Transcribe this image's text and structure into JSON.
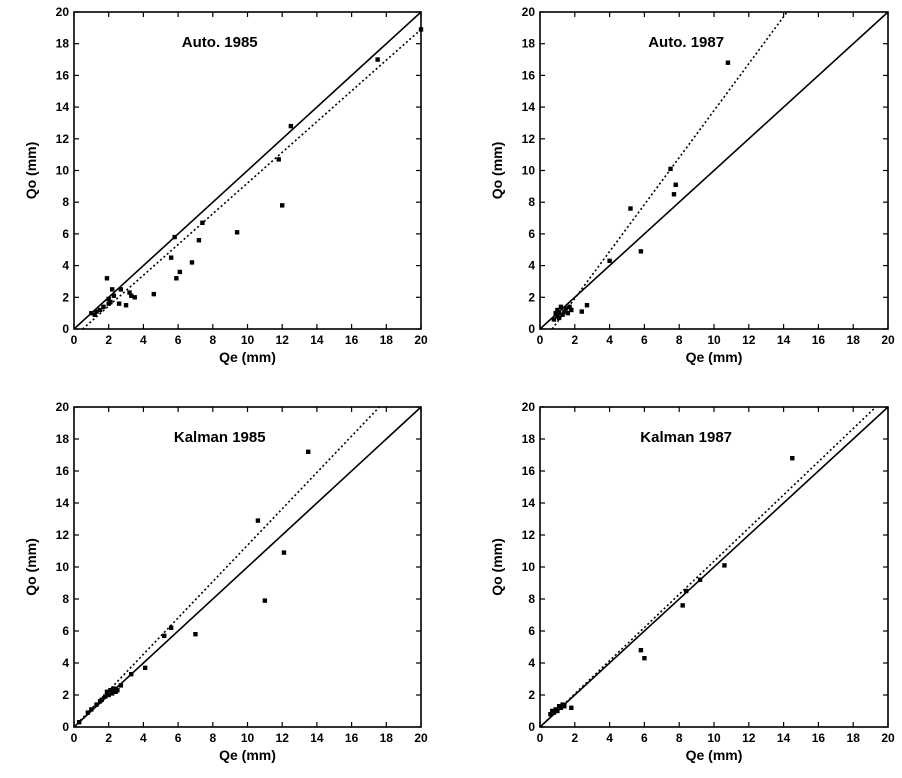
{
  "chart_data": [
    {
      "type": "scatter",
      "title": "Auto. 1985",
      "xlabel": "Qe (mm)",
      "ylabel": "Qo (mm)",
      "xlim": [
        0,
        20
      ],
      "ylim": [
        0,
        20
      ],
      "xticks": [
        "0",
        "2",
        "4",
        "6",
        "8",
        "10",
        "12",
        "14",
        "16",
        "18",
        "20"
      ],
      "yticks": [
        "0",
        "2",
        "4",
        "6",
        "8",
        "10",
        "12",
        "14",
        "16",
        "18",
        "20"
      ],
      "grid": false,
      "lines": [
        {
          "style": "solid",
          "x": [
            0,
            20
          ],
          "y": [
            0,
            20
          ]
        },
        {
          "style": "dotted",
          "x": [
            0.5,
            20
          ],
          "y": [
            0,
            18.9
          ]
        }
      ],
      "points": [
        [
          1.0,
          1.0
        ],
        [
          1.2,
          0.9
        ],
        [
          1.3,
          1.1
        ],
        [
          1.5,
          1.2
        ],
        [
          1.7,
          1.4
        ],
        [
          1.9,
          3.2
        ],
        [
          2.0,
          1.6
        ],
        [
          2.0,
          1.9
        ],
        [
          2.1,
          1.7
        ],
        [
          2.2,
          2.5
        ],
        [
          2.3,
          2.1
        ],
        [
          2.6,
          1.6
        ],
        [
          2.7,
          2.5
        ],
        [
          3.0,
          1.5
        ],
        [
          3.2,
          2.3
        ],
        [
          3.3,
          2.1
        ],
        [
          3.5,
          2.0
        ],
        [
          4.6,
          2.2
        ],
        [
          5.6,
          4.5
        ],
        [
          5.8,
          5.8
        ],
        [
          5.9,
          3.2
        ],
        [
          6.1,
          3.6
        ],
        [
          6.8,
          4.2
        ],
        [
          7.2,
          5.6
        ],
        [
          7.4,
          6.7
        ],
        [
          9.4,
          6.1
        ],
        [
          11.8,
          10.7
        ],
        [
          12.0,
          7.8
        ],
        [
          12.5,
          12.8
        ],
        [
          17.5,
          17.0
        ],
        [
          20.0,
          18.9
        ]
      ]
    },
    {
      "type": "scatter",
      "title": "Auto. 1987",
      "xlabel": "Qe (mm)",
      "ylabel": "Qo (mm)",
      "xlim": [
        0,
        20
      ],
      "ylim": [
        0,
        20
      ],
      "xticks": [
        "0",
        "2",
        "4",
        "6",
        "8",
        "10",
        "12",
        "14",
        "16",
        "18",
        "20"
      ],
      "yticks": [
        "0",
        "2",
        "4",
        "6",
        "8",
        "10",
        "12",
        "14",
        "16",
        "18",
        "20"
      ],
      "grid": false,
      "lines": [
        {
          "style": "solid",
          "x": [
            0,
            20
          ],
          "y": [
            0,
            20
          ]
        },
        {
          "style": "dotted",
          "x": [
            0.7,
            14.2
          ],
          "y": [
            0,
            20
          ]
        }
      ],
      "points": [
        [
          0.8,
          0.6
        ],
        [
          0.9,
          1.0
        ],
        [
          1.0,
          0.8
        ],
        [
          1.0,
          1.2
        ],
        [
          1.1,
          0.7
        ],
        [
          1.1,
          1.0
        ],
        [
          1.2,
          1.4
        ],
        [
          1.3,
          0.9
        ],
        [
          1.4,
          1.1
        ],
        [
          1.5,
          1.3
        ],
        [
          1.6,
          1.0
        ],
        [
          1.7,
          1.4
        ],
        [
          1.8,
          1.2
        ],
        [
          2.4,
          1.1
        ],
        [
          2.7,
          1.5
        ],
        [
          4.0,
          4.3
        ],
        [
          5.2,
          7.6
        ],
        [
          5.8,
          4.9
        ],
        [
          7.5,
          10.1
        ],
        [
          7.7,
          8.5
        ],
        [
          7.8,
          9.1
        ],
        [
          10.8,
          16.8
        ]
      ]
    },
    {
      "type": "scatter",
      "title": "Kalman 1985",
      "xlabel": "Qe (mm)",
      "ylabel": "Qo (mm)",
      "xlim": [
        0,
        20
      ],
      "ylim": [
        0,
        20
      ],
      "xticks": [
        "0",
        "2",
        "4",
        "6",
        "8",
        "10",
        "12",
        "14",
        "16",
        "18",
        "20"
      ],
      "yticks": [
        "0",
        "2",
        "4",
        "6",
        "8",
        "10",
        "12",
        "14",
        "16",
        "18",
        "20"
      ],
      "grid": false,
      "lines": [
        {
          "style": "solid",
          "x": [
            0,
            20
          ],
          "y": [
            0,
            20
          ]
        },
        {
          "style": "dotted",
          "x": [
            0,
            17.6
          ],
          "y": [
            0,
            20
          ]
        }
      ],
      "points": [
        [
          0.3,
          0.3
        ],
        [
          0.8,
          0.9
        ],
        [
          1.0,
          1.1
        ],
        [
          1.3,
          1.4
        ],
        [
          1.5,
          1.6
        ],
        [
          1.6,
          1.7
        ],
        [
          1.8,
          1.9
        ],
        [
          1.9,
          2.2
        ],
        [
          2.0,
          2.0
        ],
        [
          2.1,
          2.3
        ],
        [
          2.2,
          2.1
        ],
        [
          2.3,
          2.4
        ],
        [
          2.4,
          2.2
        ],
        [
          2.5,
          2.3
        ],
        [
          2.7,
          2.6
        ],
        [
          3.3,
          3.3
        ],
        [
          4.1,
          3.7
        ],
        [
          5.2,
          5.7
        ],
        [
          5.6,
          6.2
        ],
        [
          7.0,
          5.8
        ],
        [
          10.6,
          12.9
        ],
        [
          11.0,
          7.9
        ],
        [
          12.1,
          10.9
        ],
        [
          13.5,
          17.2
        ]
      ]
    },
    {
      "type": "scatter",
      "title": "Kalman 1987",
      "xlabel": "Qe (mm)",
      "ylabel": "Qo (mm)",
      "xlim": [
        0,
        20
      ],
      "ylim": [
        0,
        20
      ],
      "xticks": [
        "0",
        "2",
        "4",
        "6",
        "8",
        "10",
        "12",
        "14",
        "16",
        "18",
        "20"
      ],
      "yticks": [
        "0",
        "2",
        "4",
        "6",
        "8",
        "10",
        "12",
        "14",
        "16",
        "18",
        "20"
      ],
      "grid": false,
      "lines": [
        {
          "style": "solid",
          "x": [
            0,
            20
          ],
          "y": [
            0,
            20
          ]
        },
        {
          "style": "dotted",
          "x": [
            0,
            19.3
          ],
          "y": [
            0,
            20
          ]
        }
      ],
      "points": [
        [
          0.6,
          0.8
        ],
        [
          0.7,
          1.0
        ],
        [
          0.8,
          0.9
        ],
        [
          0.9,
          1.1
        ],
        [
          1.0,
          1.0
        ],
        [
          1.1,
          1.3
        ],
        [
          1.2,
          1.2
        ],
        [
          1.3,
          1.4
        ],
        [
          1.4,
          1.3
        ],
        [
          1.8,
          1.2
        ],
        [
          5.8,
          4.8
        ],
        [
          6.0,
          4.3
        ],
        [
          8.2,
          7.6
        ],
        [
          8.4,
          8.5
        ],
        [
          9.2,
          9.2
        ],
        [
          10.6,
          10.1
        ],
        [
          14.5,
          16.8
        ]
      ]
    }
  ]
}
